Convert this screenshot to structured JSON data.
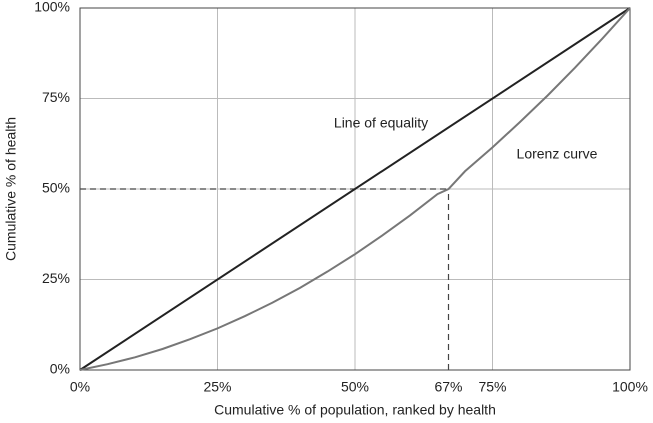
{
  "chart_data": {
    "type": "line",
    "xlabel": "Cumulative % of population, ranked by health",
    "ylabel": "Cumulative % of health",
    "xlim": [
      0,
      100
    ],
    "ylim": [
      0,
      100
    ],
    "xticks": [
      {
        "value": 0,
        "label": "0%"
      },
      {
        "value": 25,
        "label": "25%"
      },
      {
        "value": 50,
        "label": "50%"
      },
      {
        "value": 75,
        "label": "75%"
      },
      {
        "value": 100,
        "label": "100%"
      }
    ],
    "yticks": [
      {
        "value": 0,
        "label": "0%"
      },
      {
        "value": 25,
        "label": "25%"
      },
      {
        "value": 50,
        "label": "50%"
      },
      {
        "value": 75,
        "label": "75%"
      },
      {
        "value": 100,
        "label": "100%"
      }
    ],
    "grid": true,
    "series": [
      {
        "name": "Line of equality",
        "color": "#222222",
        "x": [
          0,
          100
        ],
        "values": [
          0,
          100
        ]
      },
      {
        "name": "Lorenz curve",
        "color": "#777777",
        "x": [
          0,
          5,
          10,
          15,
          20,
          25,
          30,
          35,
          40,
          45,
          50,
          55,
          60,
          65,
          67,
          70,
          75,
          80,
          85,
          90,
          95,
          100
        ],
        "values": [
          0,
          1.6,
          3.5,
          5.8,
          8.5,
          11.5,
          14.9,
          18.6,
          22.7,
          27.2,
          32,
          37.2,
          42.7,
          48.6,
          50,
          54.9,
          61.5,
          68.5,
          75.8,
          83.5,
          91.6,
          100
        ]
      }
    ],
    "reference_lines": [
      {
        "x": [
          0,
          67
        ],
        "values": [
          50,
          50
        ]
      },
      {
        "x": [
          67,
          67
        ],
        "values": [
          0,
          50
        ],
        "label": "67%"
      }
    ]
  }
}
